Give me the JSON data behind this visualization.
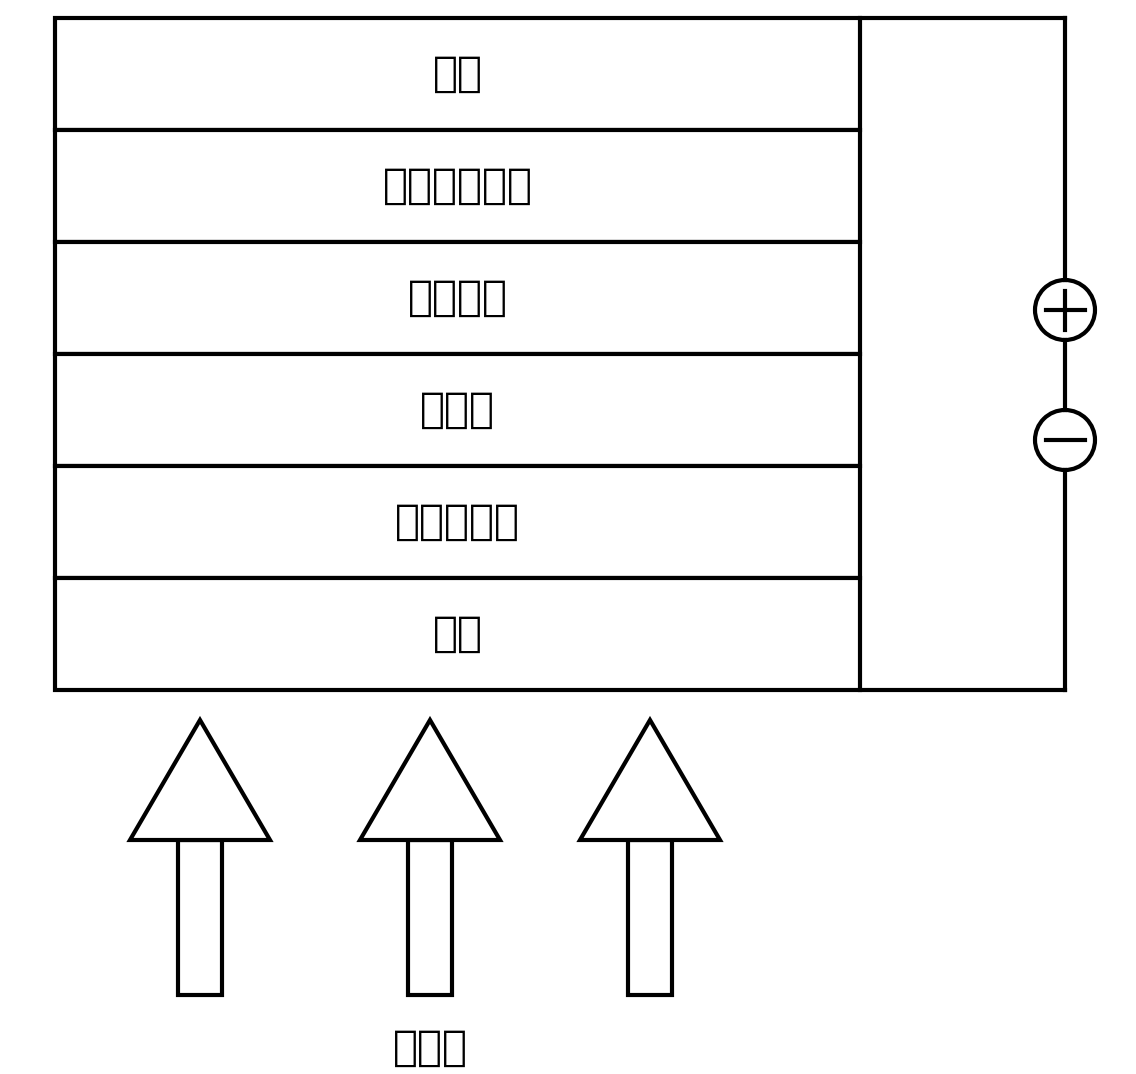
{
  "layers": [
    {
      "label": "阳极"
    },
    {
      "label": "背电极修饰层"
    },
    {
      "label": "光活性层"
    },
    {
      "label": "窗口层"
    },
    {
      "label": "阴极界面层"
    },
    {
      "label": "阴极"
    }
  ],
  "incident_label": "入射光",
  "bg_color": "#ffffff",
  "line_color": "#000000",
  "text_color": "#000000",
  "lw": 3.0,
  "font_size": 30
}
